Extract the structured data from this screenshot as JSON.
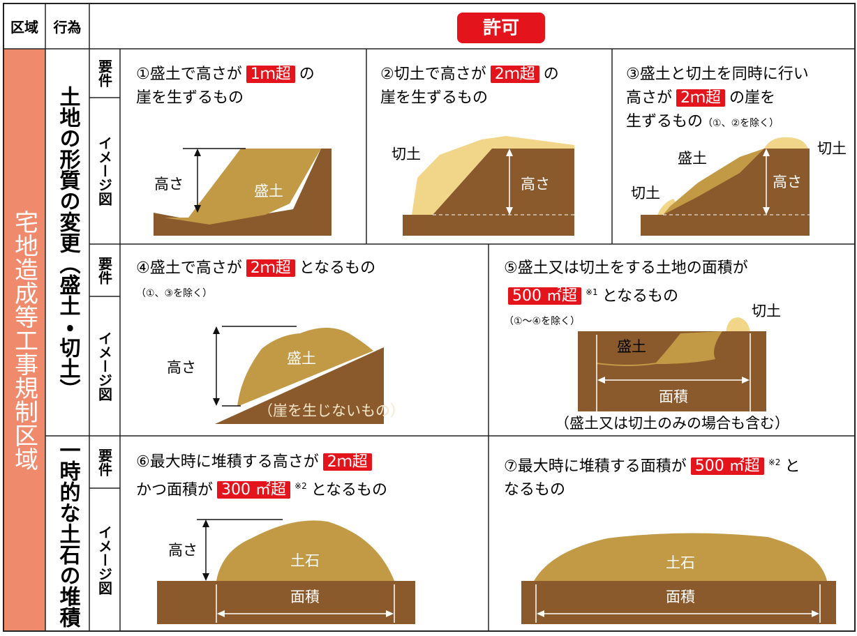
{
  "header": {
    "area": "区域",
    "action": "行為",
    "permission": "許可"
  },
  "region": "宅地造成等工事規制区域",
  "groups": [
    "土地の形質の変更（盛土・切土）",
    "一時的な土石の堆積"
  ],
  "row_labels": {
    "requirement": "要件",
    "image": "イメージ図"
  },
  "panels": [
    {
      "lines": [
        [
          "①盛土で高さが",
          {
            "hl": "1ｍ超"
          },
          "の"
        ],
        [
          "崖を生ずるもの"
        ]
      ],
      "labels": [
        "高さ",
        "盛土"
      ]
    },
    {
      "lines": [
        [
          "②切土で高さが",
          {
            "hl": "2ｍ超"
          },
          "の"
        ],
        [
          "崖を生ずるもの"
        ]
      ],
      "labels": [
        "切土",
        "高さ"
      ]
    },
    {
      "lines": [
        [
          "③盛土と切土を同時に行い"
        ],
        [
          "高さが",
          {
            "hl": "2ｍ超"
          },
          "の崖を"
        ],
        [
          "生ずるもの",
          {
            "small": "（①、②を除く）"
          }
        ]
      ],
      "labels": [
        "盛土",
        "切土",
        "切土",
        "高さ"
      ]
    },
    {
      "lines": [
        [
          "④盛土で高さが",
          {
            "hl": "2ｍ超"
          },
          "となるもの"
        ],
        [
          {
            "small": "（①、③を除く）"
          }
        ]
      ],
      "labels": [
        "高さ",
        "盛土",
        "（崖を生じないもの）"
      ]
    },
    {
      "lines": [
        [
          "⑤盛土又は切土をする土地の面積が"
        ],
        [
          {
            "hl": "500 ㎡超"
          },
          {
            "sup": "※1"
          },
          "となるもの"
        ],
        [
          {
            "small": "（①～④を除く）"
          }
        ]
      ],
      "labels": [
        "切土",
        "盛土",
        "面積",
        "（盛土又は切土のみの場合も含む）"
      ]
    },
    {
      "lines": [
        [
          "⑥最大時に堆積する高さが",
          {
            "hl": "2ｍ超"
          }
        ],
        [
          "かつ面積が",
          {
            "hl": "300 ㎡超"
          },
          {
            "sup": "※2"
          },
          "となるもの"
        ]
      ],
      "labels": [
        "高さ",
        "土石",
        "面積"
      ]
    },
    {
      "lines": [
        [
          "⑦最大時に堆積する面積が",
          {
            "hl": "500 ㎡超"
          },
          {
            "sup": "※2"
          },
          "と"
        ],
        [
          "なるもの"
        ]
      ],
      "labels": [
        "土石",
        "面積"
      ]
    }
  ]
}
